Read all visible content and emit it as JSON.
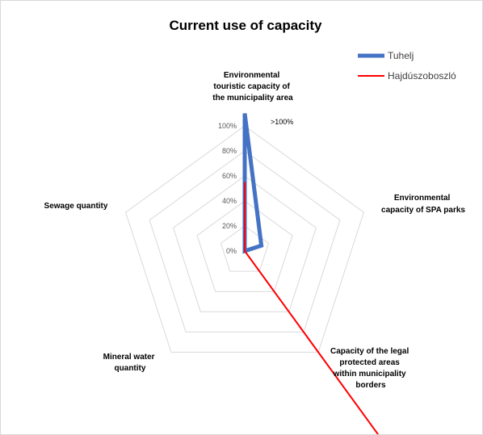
{
  "chart_data": {
    "type": "radar",
    "title": "Current use of capacity",
    "axes": [
      "Environmental touristic capacity of the municipality area",
      "Environmental capacity of SPA parks",
      "Capacity of the legal protected areas within municipality borders",
      "Mineral water quantity",
      "Sewage quantity"
    ],
    "axis_labels": [
      [
        "Environmental",
        "touristic capacity of",
        "the municipality area"
      ],
      [
        "Environmental",
        "capacity of SPA parks"
      ],
      [
        "Capacity of the legal",
        "protected areas",
        "within municipality",
        "borders"
      ],
      [
        "Mineral water",
        "quantity"
      ],
      [
        "Sewage quantity"
      ]
    ],
    "ticks": [
      "0%",
      "20%",
      "40%",
      "60%",
      "80%",
      "100%"
    ],
    "ylim": [
      0,
      100
    ],
    "grid": true,
    "legend_position": "top-right",
    "annotations": [
      ">100%"
    ],
    "series": [
      {
        "name": "Tuhelj",
        "color": "#4472c4",
        "values": [
          110,
          14,
          0,
          0,
          0
        ]
      },
      {
        "name": "Hajdúszoboszló",
        "color": "#ff0000",
        "values": [
          55,
          0,
          200,
          0,
          0
        ]
      }
    ]
  }
}
